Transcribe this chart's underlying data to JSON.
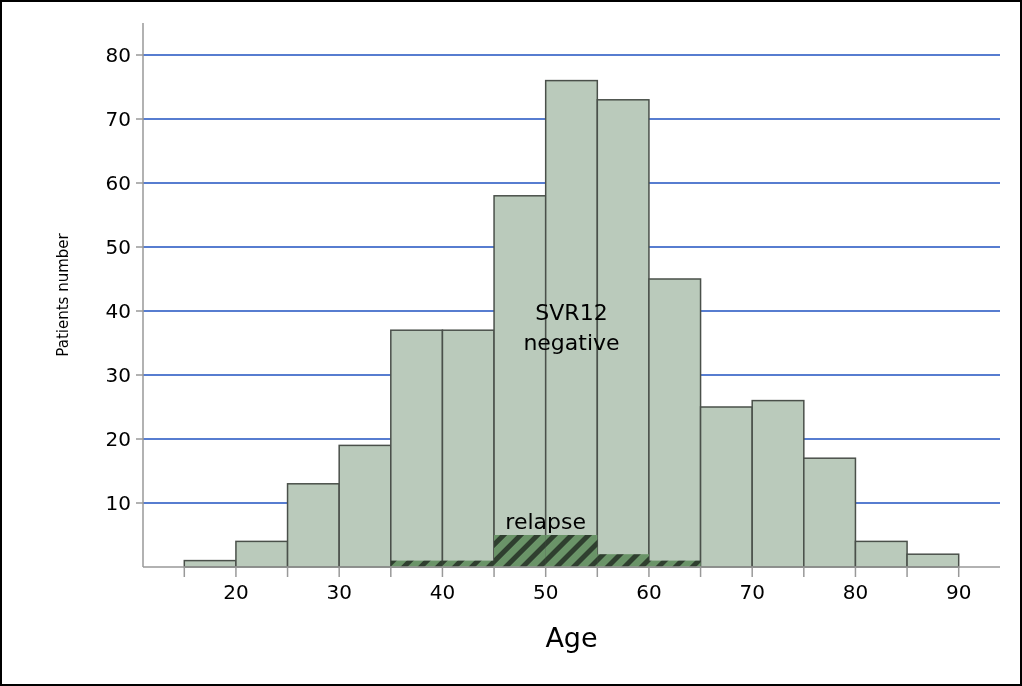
{
  "chart_data": {
    "type": "histogram",
    "xlabel": "Age",
    "ylabel": "Patients number",
    "bins": [
      15,
      20,
      25,
      30,
      35,
      40,
      45,
      50,
      55,
      60,
      65,
      70,
      75,
      80,
      85,
      90
    ],
    "series": [
      {
        "name": "SVR12 negative",
        "color": "#bacabb",
        "values": [
          1,
          4,
          13,
          19,
          37,
          37,
          58,
          76,
          73,
          45,
          25,
          26,
          17,
          4,
          2
        ]
      },
      {
        "name": "relapse",
        "color": "#6a9468",
        "values": [
          0,
          0,
          0,
          0,
          1,
          1,
          5,
          5,
          2,
          1,
          0,
          0,
          0,
          0,
          0
        ]
      }
    ],
    "xlim": [
      11,
      94
    ],
    "ylim": [
      0,
      85
    ],
    "xticks": [
      {
        "value": 15,
        "label": null
      },
      20,
      {
        "value": 25,
        "label": null
      },
      30,
      {
        "value": 35,
        "label": null
      },
      40,
      {
        "value": 45,
        "label": null
      },
      50,
      {
        "value": 55,
        "label": null
      },
      60,
      {
        "value": 65,
        "label": null
      },
      70,
      {
        "value": 75,
        "label": null
      },
      80,
      {
        "value": 85,
        "label": null
      },
      90
    ],
    "yticks": [
      10,
      20,
      30,
      40,
      50,
      60,
      70,
      80
    ],
    "grid": "y"
  }
}
